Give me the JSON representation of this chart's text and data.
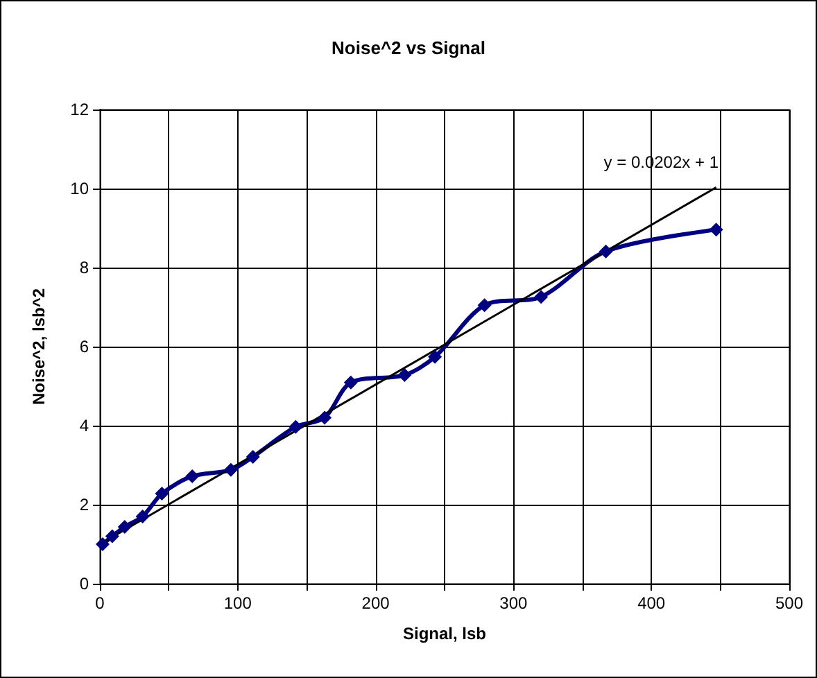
{
  "chart_data": {
    "type": "line",
    "title": "Noise^2 vs Signal",
    "xlabel": "Signal, lsb",
    "ylabel": "Noise^2, lsb^2",
    "x": [
      2,
      9,
      18,
      31,
      45,
      67,
      95,
      111,
      142,
      163,
      182,
      221,
      243,
      279,
      320,
      367,
      447
    ],
    "series": [
      {
        "color": "#000080",
        "values": [
          1.0,
          1.2,
          1.44,
          1.7,
          2.28,
          2.72,
          2.88,
          3.21,
          3.97,
          4.2,
          5.09,
          5.28,
          5.74,
          7.05,
          7.26,
          8.41,
          8.96
        ],
        "marker": "diamond"
      },
      {
        "color": "#000000",
        "x": [
          0,
          447
        ],
        "values": [
          1,
          10.03
        ],
        "marker": "none"
      }
    ],
    "annotations": [
      "y = 0.0202x + 1"
    ],
    "xlim": [
      0,
      500
    ],
    "xticks": [
      0,
      {
        "value": 50,
        "label": null
      },
      100,
      {
        "value": 150,
        "label": null
      },
      200,
      {
        "value": 250,
        "label": null
      },
      300,
      {
        "value": 350,
        "label": null
      },
      400,
      {
        "value": 450,
        "label": null
      },
      500
    ],
    "ylim": [
      0,
      12
    ],
    "yticks": [
      0,
      2,
      4,
      6,
      8,
      10,
      12
    ],
    "grid": true
  }
}
